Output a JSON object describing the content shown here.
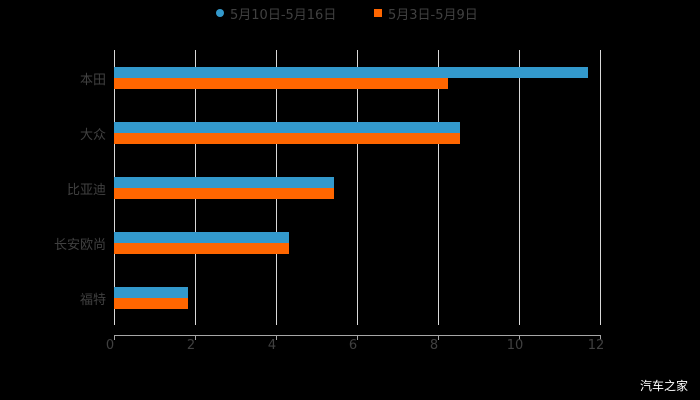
{
  "chart_data": {
    "type": "bar",
    "orientation": "horizontal",
    "title": "",
    "categories": [
      "本田",
      "大众",
      "比亚迪",
      "长安欧尚",
      "福特"
    ],
    "series": [
      {
        "name": "5月10日-5月16日",
        "color": "#3399cc",
        "marker": "circle",
        "values": [
          11.7,
          8.55,
          5.43,
          4.32,
          1.83
        ]
      },
      {
        "name": "5月3日-5月9日",
        "color": "#ff6600",
        "marker": "square",
        "values": [
          8.25,
          8.55,
          5.43,
          4.32,
          1.83
        ]
      }
    ],
    "xlabel": "",
    "ylabel": "",
    "xlim": [
      0,
      12
    ],
    "xticks": [
      "0",
      "2",
      "4",
      "6",
      "8",
      "10",
      "12"
    ],
    "grid": true,
    "legend_position": "top"
  },
  "legend": {
    "items": [
      {
        "label": "5月10日-5月16日",
        "color": "#3399cc"
      },
      {
        "label": "5月3日-5月9日",
        "color": "#ff6600"
      }
    ]
  },
  "watermark": "汽车之家"
}
